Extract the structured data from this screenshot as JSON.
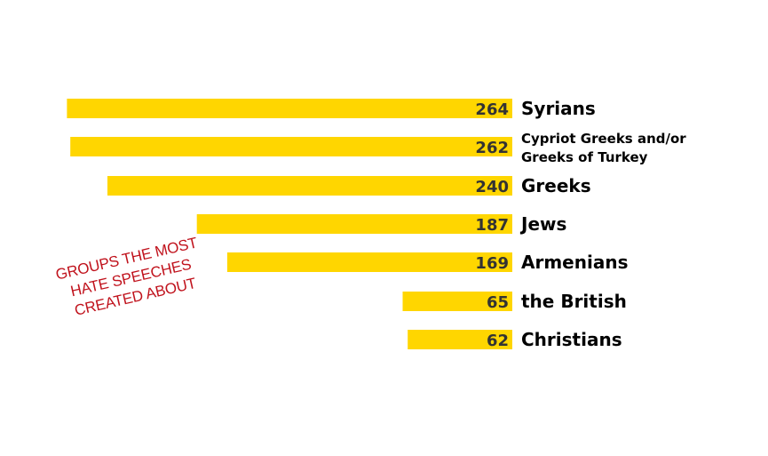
{
  "chart_data": {
    "type": "bar",
    "orientation": "horizontal",
    "categories": [
      "Syrians",
      "Cypriot Greeks and/or Greeks of Turkey",
      "Greeks",
      "Jews",
      "Armenians",
      "the British",
      "Christians"
    ],
    "category_lines": [
      [
        "Syrians"
      ],
      [
        "Cypriot Greeks and/or",
        "Greeks of Turkey"
      ],
      [
        "Greeks"
      ],
      [
        "Jews"
      ],
      [
        "Armenians"
      ],
      [
        "the British"
      ],
      [
        "Christians"
      ]
    ],
    "values": [
      264,
      262,
      240,
      187,
      169,
      65,
      62
    ],
    "bar_color": "#ffd600",
    "grid": false,
    "legend": "none"
  },
  "annotation": {
    "lines": [
      "GROUPS THE MOST",
      "HATE SPEECHES",
      "CREATED ABOUT"
    ],
    "color": "#c0121c"
  }
}
